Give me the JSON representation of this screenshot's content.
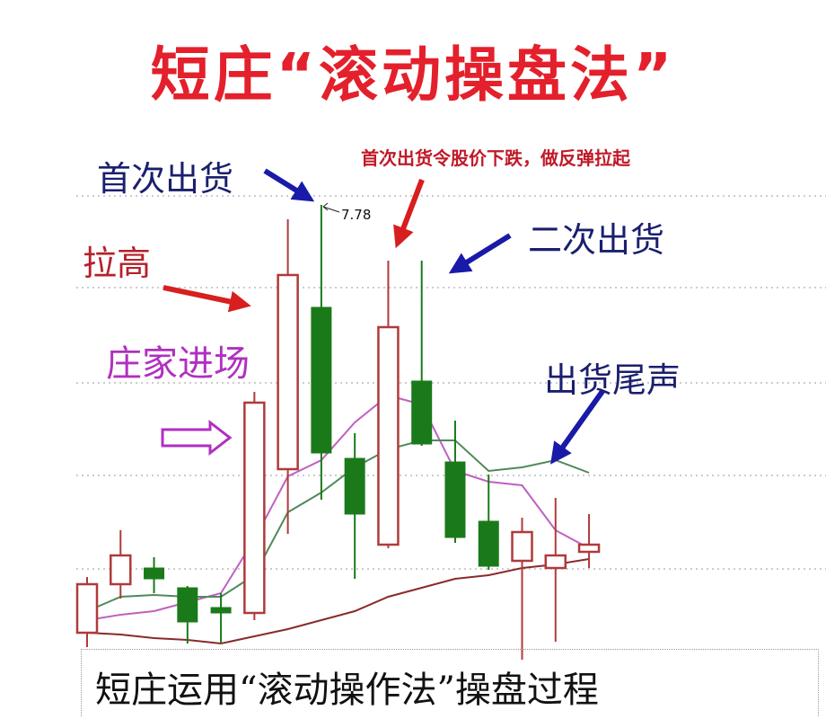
{
  "title": "短庄“滚动操盘法”",
  "caption": "短庄运用“滚动操作法”操盘过程",
  "annotations": {
    "first_distribution": "首次出货",
    "first_note": "首次出货令股价下跌，做反弹拉起",
    "second_distribution": "二次出货",
    "pull_up": "拉高",
    "dealer_entry": "庄家进场",
    "distribution_end": "出货尾声",
    "peak_label": "7.78"
  },
  "colors": {
    "up": "#b03a3a",
    "down": "#1a7a1a",
    "title": "#e3202c",
    "ma_short": "#c060c0",
    "ma_mid": "#4f8a5a",
    "ma_long": "#8a2a2a",
    "arrow_blue": "#1a1aa8",
    "arrow_red": "#d81e1e"
  },
  "chart_data": {
    "type": "candlestick",
    "title": "",
    "xlabel": "",
    "ylabel": "",
    "grid": true,
    "annotated_high": 7.78,
    "candles": [
      {
        "o": 5.4,
        "h": 5.71,
        "l": 5.32,
        "c": 5.67
      },
      {
        "o": 5.67,
        "h": 5.97,
        "l": 5.59,
        "c": 5.83
      },
      {
        "o": 5.76,
        "h": 5.82,
        "l": 5.62,
        "c": 5.7
      },
      {
        "o": 5.65,
        "h": 5.66,
        "l": 5.34,
        "c": 5.46
      },
      {
        "o": 5.54,
        "h": 5.62,
        "l": 5.34,
        "c": 5.51
      },
      {
        "o": 5.51,
        "h": 6.74,
        "l": 5.47,
        "c": 6.68
      },
      {
        "o": 6.31,
        "h": 7.7,
        "l": 5.95,
        "c": 7.39
      },
      {
        "o": 7.21,
        "h": 7.78,
        "l": 6.14,
        "c": 6.4
      },
      {
        "o": 6.37,
        "h": 6.51,
        "l": 5.7,
        "c": 6.06
      },
      {
        "o": 5.89,
        "h": 7.47,
        "l": 5.87,
        "c": 7.1
      },
      {
        "o": 6.8,
        "h": 7.47,
        "l": 6.44,
        "c": 6.45
      },
      {
        "o": 6.35,
        "h": 6.58,
        "l": 5.9,
        "c": 5.93
      },
      {
        "o": 6.02,
        "h": 6.28,
        "l": 5.75,
        "c": 5.77
      },
      {
        "o": 5.8,
        "h": 6.04,
        "l": 5.25,
        "c": 5.96
      },
      {
        "o": 5.76,
        "h": 6.15,
        "l": 5.35,
        "c": 5.83
      },
      {
        "o": 5.85,
        "h": 6.06,
        "l": 5.76,
        "c": 5.89
      }
    ],
    "moving_averages": [
      {
        "key": "ma_short",
        "values": [
          5.47,
          5.5,
          5.52,
          5.57,
          5.62,
          5.92,
          6.27,
          6.36,
          6.57,
          6.72,
          6.67,
          6.3,
          6.24,
          6.22,
          5.97,
          5.87
        ]
      },
      {
        "key": "ma_mid",
        "values": [
          5.52,
          5.6,
          5.61,
          5.6,
          5.6,
          5.72,
          6.07,
          6.18,
          6.32,
          6.42,
          6.47,
          6.47,
          6.3,
          6.32,
          6.36,
          6.29
        ]
      },
      {
        "key": "ma_long",
        "values": [
          5.4,
          5.39,
          5.37,
          5.36,
          5.34,
          5.38,
          5.42,
          5.47,
          5.52,
          5.6,
          5.65,
          5.7,
          5.72,
          5.76,
          5.78,
          5.81
        ]
      }
    ]
  }
}
